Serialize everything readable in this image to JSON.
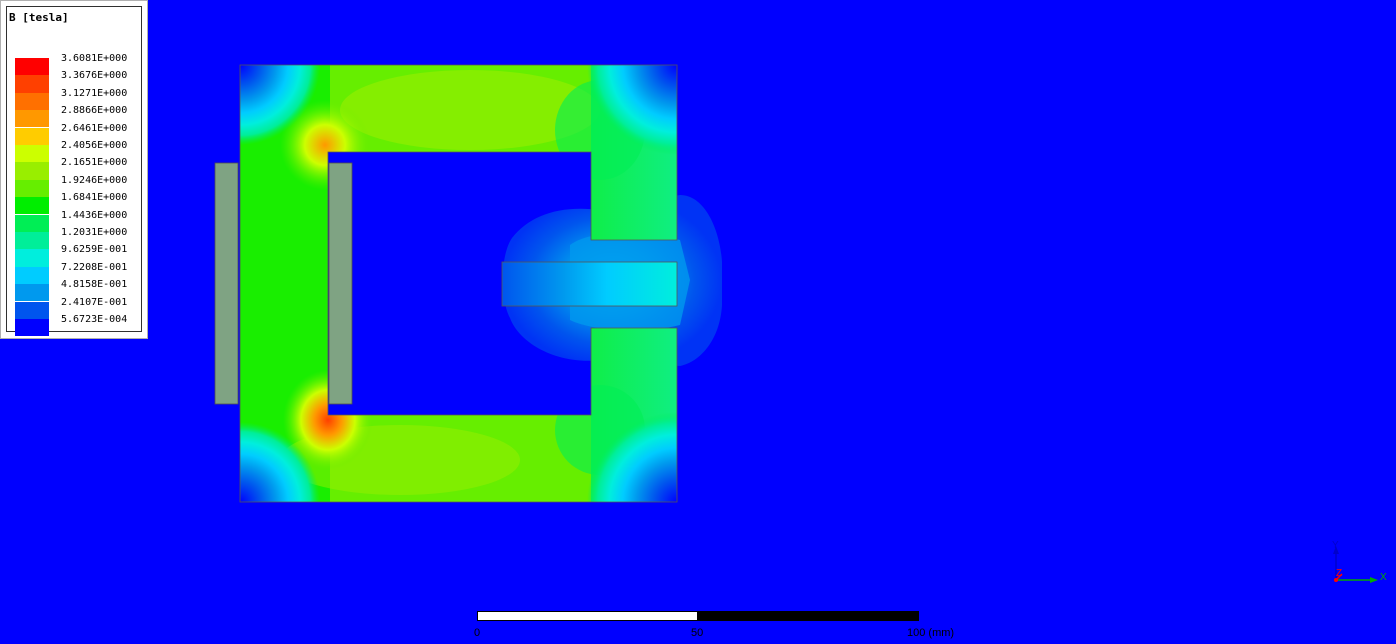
{
  "legend": {
    "title": "B [tesla]",
    "entries": [
      {
        "label": "3.6081E+000",
        "color": "#ff0000"
      },
      {
        "label": "3.3676E+000",
        "color": "#ff4000"
      },
      {
        "label": "3.1271E+000",
        "color": "#ff7000"
      },
      {
        "label": "2.8866E+000",
        "color": "#ff9800"
      },
      {
        "label": "2.6461E+000",
        "color": "#ffcc00"
      },
      {
        "label": "2.4056E+000",
        "color": "#ccff00"
      },
      {
        "label": "2.1651E+000",
        "color": "#99ee00"
      },
      {
        "label": "1.9246E+000",
        "color": "#66ee00"
      },
      {
        "label": "1.6841E+000",
        "color": "#00ee00"
      },
      {
        "label": "1.4436E+000",
        "color": "#00ee55"
      },
      {
        "label": "1.2031E+000",
        "color": "#00ee99"
      },
      {
        "label": "9.6259E-001",
        "color": "#00eedd"
      },
      {
        "label": "7.2208E-001",
        "color": "#00ccff"
      },
      {
        "label": "4.8158E-001",
        "color": "#0099ee"
      },
      {
        "label": "2.4107E-001",
        "color": "#0055ee"
      },
      {
        "label": "5.6723E-004",
        "color": "#0000ff"
      }
    ]
  },
  "scale_bar": {
    "labels": [
      "0",
      "50",
      "100 (mm)"
    ]
  },
  "triad": {
    "y_label": "Y",
    "z_label": "Z",
    "x_label": "X",
    "colors": {
      "x": "#00aa00",
      "y": "#0000cc",
      "z": "#ff0000"
    }
  },
  "colors": {
    "background": "#0000ff",
    "coil": "#7fa383"
  }
}
